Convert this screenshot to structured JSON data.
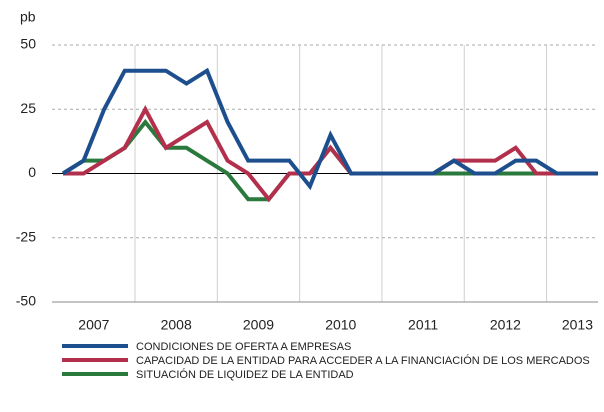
{
  "chart_data": {
    "type": "line",
    "y_unit": "pb",
    "x_labels": [
      "2007",
      "2008",
      "2009",
      "2010",
      "2011",
      "2012",
      "2013"
    ],
    "ylim": [
      -50,
      50
    ],
    "yticks": [
      -50,
      -25,
      0,
      25,
      50
    ],
    "grid": true,
    "series": [
      {
        "name": "CONDICIONES DE OFERTA A EMPRESAS",
        "color": "#1d4f8f",
        "values": [
          0,
          5,
          25,
          40,
          40,
          40,
          35,
          40,
          20,
          5,
          5,
          5,
          -5,
          15,
          0,
          0,
          0,
          0,
          0,
          5,
          0,
          0,
          5,
          5,
          0,
          0,
          0
        ]
      },
      {
        "name": "CAPACIDAD DE LA ENTIDAD PARA ACCEDER A LA FINANCIACIÓN DE LOS MERCADOS",
        "color": "#b3304c",
        "values": [
          0,
          0,
          5,
          10,
          25,
          10,
          15,
          20,
          5,
          0,
          -10,
          0,
          0,
          10,
          0,
          0,
          0,
          0,
          0,
          5,
          5,
          5,
          10,
          0,
          0,
          0,
          0
        ]
      },
      {
        "name": "SITUACIÓN DE LIQUIDEZ DE LA ENTIDAD",
        "color": "#2b7a3d",
        "values": [
          0,
          5,
          5,
          10,
          20,
          10,
          10,
          5,
          0,
          -10,
          -10,
          0,
          0,
          10,
          0,
          0,
          0,
          0,
          0,
          0,
          0,
          0,
          0,
          0,
          0,
          0,
          0
        ]
      }
    ]
  }
}
